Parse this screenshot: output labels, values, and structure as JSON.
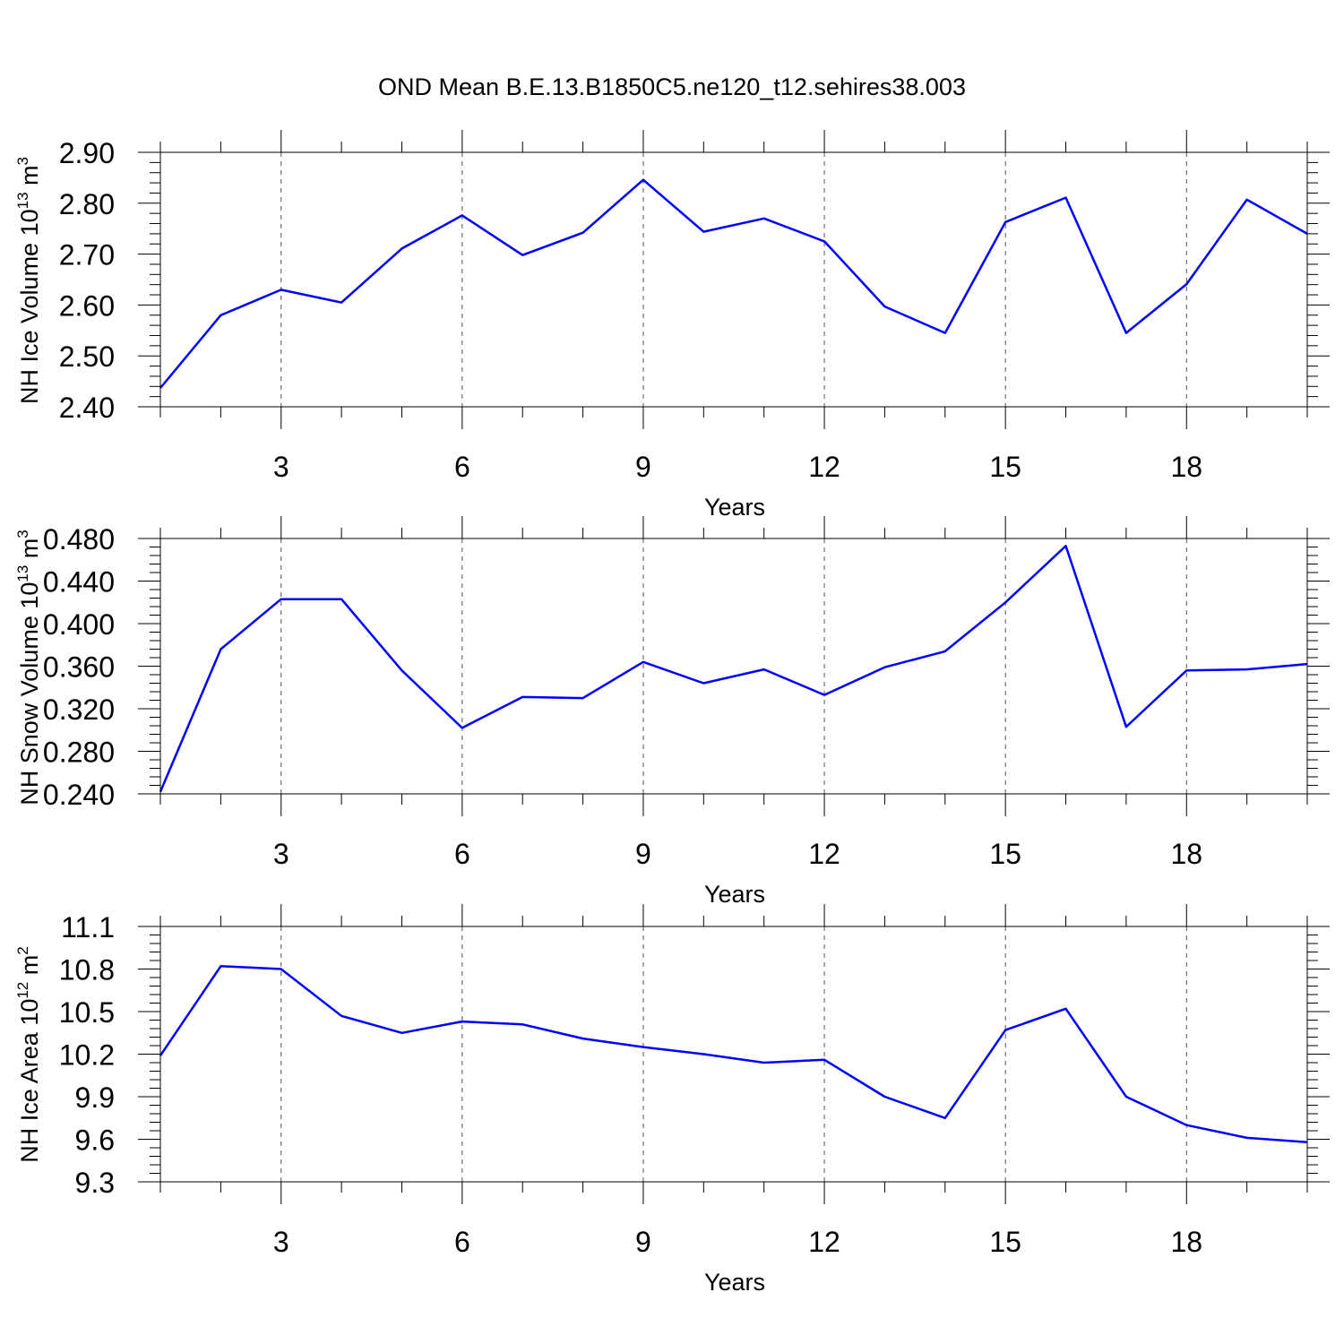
{
  "figure_title": "OND Mean B.E.13.B1850C5.ne120_t12.sehires38.003",
  "colors": {
    "line": "#0000ff",
    "frame": "#000000",
    "grid": "#555555"
  },
  "chart_data": [
    {
      "type": "line",
      "xlabel": "Years",
      "ylabel_parts": [
        "NH Ice Volume 10",
        "13",
        " m",
        "3"
      ],
      "xlim": [
        1,
        20
      ],
      "ylim": [
        2.4,
        2.9
      ],
      "xticks": [
        3,
        6,
        9,
        12,
        15,
        18
      ],
      "xtick_labels": [
        "3",
        "6",
        "9",
        "12",
        "15",
        "18"
      ],
      "yticks": [
        2.4,
        2.5,
        2.6,
        2.7,
        2.8,
        2.9
      ],
      "ytick_labels": [
        "2.40",
        "2.50",
        "2.60",
        "2.70",
        "2.80",
        "2.90"
      ],
      "grid": "vertical dashed at major x ticks",
      "x": [
        1,
        2,
        3,
        4,
        5,
        6,
        7,
        8,
        9,
        10,
        11,
        12,
        13,
        14,
        15,
        16,
        17,
        18,
        19,
        20
      ],
      "series": [
        {
          "values": [
            2.437,
            2.58,
            2.63,
            2.605,
            2.711,
            2.776,
            2.698,
            2.742,
            2.846,
            2.744,
            2.77,
            2.725,
            2.597,
            2.545,
            2.763,
            2.811,
            2.545,
            2.641,
            2.807,
            2.74
          ]
        }
      ]
    },
    {
      "type": "line",
      "xlabel": "Years",
      "ylabel_parts": [
        "NH Snow Volume 10",
        "13",
        " m",
        "3"
      ],
      "xlim": [
        1,
        20
      ],
      "ylim": [
        0.24,
        0.48
      ],
      "xticks": [
        3,
        6,
        9,
        12,
        15,
        18
      ],
      "xtick_labels": [
        "3",
        "6",
        "9",
        "12",
        "15",
        "18"
      ],
      "yticks": [
        0.24,
        0.28,
        0.32,
        0.36,
        0.4,
        0.44,
        0.48
      ],
      "ytick_labels": [
        "0.240",
        "0.280",
        "0.320",
        "0.360",
        "0.400",
        "0.440",
        "0.480"
      ],
      "grid": "vertical dashed at major x ticks",
      "x": [
        1,
        2,
        3,
        4,
        5,
        6,
        7,
        8,
        9,
        10,
        11,
        12,
        13,
        14,
        15,
        16,
        17,
        18,
        19,
        20
      ],
      "series": [
        {
          "values": [
            0.242,
            0.376,
            0.423,
            0.423,
            0.356,
            0.302,
            0.331,
            0.33,
            0.364,
            0.344,
            0.357,
            0.333,
            0.359,
            0.374,
            0.42,
            0.473,
            0.303,
            0.356,
            0.357,
            0.362
          ]
        }
      ]
    },
    {
      "type": "line",
      "xlabel": "Years",
      "ylabel_parts": [
        "NH Ice Area 10",
        "12",
        " m",
        "2"
      ],
      "xlim": [
        1,
        20
      ],
      "ylim": [
        9.3,
        11.1
      ],
      "xticks": [
        3,
        6,
        9,
        12,
        15,
        18
      ],
      "xtick_labels": [
        "3",
        "6",
        "9",
        "12",
        "15",
        "18"
      ],
      "yticks": [
        9.3,
        9.6,
        9.9,
        10.2,
        10.5,
        10.8,
        11.1
      ],
      "ytick_labels": [
        "9.3",
        "9.6",
        "9.9",
        "10.2",
        "10.5",
        "10.8",
        "11.1"
      ],
      "grid": "vertical dashed at major x ticks",
      "x": [
        1,
        2,
        3,
        4,
        5,
        6,
        7,
        8,
        9,
        10,
        11,
        12,
        13,
        14,
        15,
        16,
        17,
        18,
        19,
        20
      ],
      "series": [
        {
          "values": [
            10.19,
            10.82,
            10.8,
            10.47,
            10.35,
            10.43,
            10.41,
            10.31,
            10.25,
            10.2,
            10.14,
            10.16,
            9.9,
            9.75,
            10.37,
            10.52,
            9.9,
            9.7,
            9.61,
            9.58
          ]
        }
      ]
    }
  ]
}
